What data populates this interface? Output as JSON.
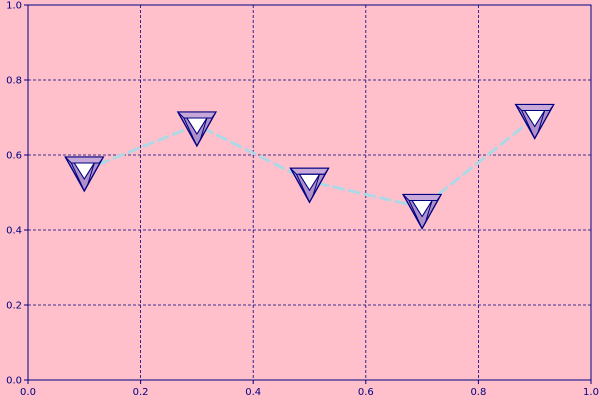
{
  "chart_data": {
    "type": "line",
    "title": "",
    "xlabel": "",
    "ylabel": "",
    "xlim": [
      0,
      1
    ],
    "ylim": [
      0,
      1
    ],
    "x_ticks": [
      "0.0",
      "0.2",
      "0.4",
      "0.6",
      "0.8",
      "1.0"
    ],
    "y_ticks": [
      "0.0",
      "0.2",
      "0.4",
      "0.6",
      "0.8",
      "1.0"
    ],
    "grid": true,
    "line_style": "dashed",
    "marker": "penrose-triangle-icon",
    "series": [
      {
        "x": [
          0.1,
          0.3,
          0.5,
          0.7,
          0.9
        ],
        "y": [
          0.56,
          0.68,
          0.53,
          0.46,
          0.7
        ]
      }
    ]
  },
  "colors": {
    "background": "#ffc0cb",
    "axes": "#000080",
    "grid": "#000080",
    "line": "#add8e6",
    "marker_fill": "#b090c8",
    "marker_stroke": "#000080"
  }
}
